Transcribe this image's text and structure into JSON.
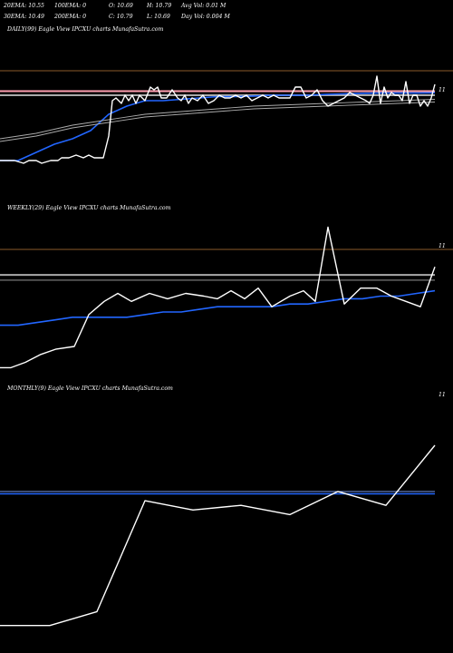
{
  "header": {
    "ema20": "20EMA: 10.55",
    "ema100": "100EMA: 0",
    "open": "O: 10.69",
    "high": "H: 10.79",
    "avgvol": "Avg Vol: 0.01 M",
    "ema30": "30EMA: 10.49",
    "ema200": "200EMA: 0",
    "close": "C: 10.79",
    "low": "L: 10.69",
    "dayvol": "Day Vol: 0.004 M"
  },
  "chart_data": [
    {
      "type": "line",
      "label": "DAILY(99) Eagle   View  IPCXU charts MunafaSutra.com",
      "tick_label": "11",
      "ylim": [
        10.4,
        10.88
      ],
      "reference_lines": [
        {
          "value": 10.805,
          "color": "#ff9fb0"
        },
        {
          "value": 10.79,
          "color": "#aaaaaa"
        }
      ],
      "series": [
        {
          "color": "#ffffff",
          "role": "price",
          "x": [
            0,
            16,
            26,
            32,
            40,
            46,
            56,
            64,
            68,
            76,
            84,
            92,
            98,
            104,
            114,
            120,
            124,
            128,
            134,
            138,
            142,
            146,
            150,
            154,
            160,
            166,
            170,
            174,
            178,
            184,
            190,
            196,
            200,
            204,
            208,
            212,
            218,
            224,
            230,
            236,
            242,
            248,
            254,
            260,
            266,
            272,
            278,
            284,
            290,
            296,
            302,
            308,
            314,
            320,
            326,
            332,
            338,
            344,
            350,
            356,
            362,
            368,
            374,
            380,
            386,
            392,
            398,
            404,
            408,
            412,
            416,
            420,
            424,
            428,
            432,
            436,
            440,
            444,
            448,
            452,
            456,
            460,
            464,
            468,
            472,
            476,
            480
          ],
          "y": [
            10.55,
            10.55,
            10.54,
            10.55,
            10.55,
            10.54,
            10.55,
            10.55,
            10.56,
            10.56,
            10.57,
            10.56,
            10.57,
            10.56,
            10.56,
            10.64,
            10.77,
            10.78,
            10.76,
            10.79,
            10.77,
            10.79,
            10.76,
            10.79,
            10.77,
            10.82,
            10.81,
            10.82,
            10.78,
            10.78,
            10.81,
            10.78,
            10.77,
            10.79,
            10.76,
            10.78,
            10.77,
            10.79,
            10.76,
            10.77,
            10.79,
            10.78,
            10.78,
            10.79,
            10.78,
            10.79,
            10.77,
            10.78,
            10.79,
            10.78,
            10.79,
            10.78,
            10.78,
            10.78,
            10.82,
            10.82,
            10.78,
            10.79,
            10.81,
            10.77,
            10.75,
            10.76,
            10.77,
            10.78,
            10.8,
            10.79,
            10.78,
            10.77,
            10.76,
            10.79,
            10.86,
            10.76,
            10.82,
            10.78,
            10.8,
            10.79,
            10.79,
            10.77,
            10.84,
            10.76,
            10.79,
            10.79,
            10.75,
            10.77,
            10.75,
            10.78,
            10.83
          ]
        },
        {
          "color": "#2266ff",
          "role": "ema",
          "x": [
            0,
            20,
            40,
            60,
            80,
            100,
            120,
            140,
            160,
            180,
            200,
            220,
            240,
            260,
            280,
            300,
            320,
            340,
            360,
            380,
            400,
            420,
            440,
            460,
            480
          ],
          "y": [
            10.55,
            10.55,
            10.58,
            10.61,
            10.63,
            10.66,
            10.72,
            10.75,
            10.77,
            10.77,
            10.775,
            10.78,
            10.785,
            10.785,
            10.787,
            10.79,
            10.79,
            10.79,
            10.793,
            10.795,
            10.797,
            10.798,
            10.798,
            10.798,
            10.799
          ]
        },
        {
          "color": "#aaaaaa",
          "role": "ema",
          "x": [
            0,
            40,
            80,
            120,
            160,
            200,
            240,
            280,
            320,
            360,
            400,
            440,
            480
          ],
          "y": [
            10.63,
            10.65,
            10.68,
            10.7,
            10.72,
            10.73,
            10.74,
            10.75,
            10.755,
            10.76,
            10.765,
            10.77,
            10.775
          ]
        },
        {
          "color": "#aaaaaa",
          "role": "ema",
          "x": [
            0,
            40,
            80,
            120,
            160,
            200,
            240,
            280,
            320,
            360,
            400,
            440,
            480
          ],
          "y": [
            10.62,
            10.64,
            10.67,
            10.69,
            10.71,
            10.72,
            10.73,
            10.74,
            10.745,
            10.75,
            10.755,
            10.76,
            10.765
          ]
        }
      ]
    },
    {
      "type": "line",
      "label": "WEEKLY(29) Eagle   View  IPCXU charts MunafaSutra.com",
      "tick_label": "11",
      "ylim": [
        10.4,
        10.92
      ],
      "reference_lines": [
        {
          "value": 10.8,
          "color": "#aaaaaa"
        }
      ],
      "series": [
        {
          "color": "#ffffff",
          "role": "price",
          "x": [
            0,
            12,
            28,
            45,
            62,
            82,
            98,
            115,
            130,
            145,
            165,
            185,
            205,
            225,
            240,
            255,
            270,
            285,
            300,
            320,
            335,
            348,
            362,
            380,
            398,
            416,
            432,
            448,
            464,
            480
          ],
          "y": [
            10.45,
            10.45,
            10.47,
            10.5,
            10.52,
            10.53,
            10.65,
            10.7,
            10.73,
            10.7,
            10.73,
            10.71,
            10.73,
            10.72,
            10.71,
            10.74,
            10.71,
            10.75,
            10.68,
            10.72,
            10.74,
            10.7,
            10.98,
            10.69,
            10.75,
            10.75,
            10.72,
            10.7,
            10.68,
            10.83
          ]
        },
        {
          "color": "#2266ff",
          "role": "ema",
          "x": [
            0,
            20,
            40,
            60,
            80,
            100,
            120,
            140,
            160,
            180,
            200,
            220,
            240,
            260,
            280,
            300,
            320,
            340,
            360,
            380,
            400,
            420,
            440,
            460,
            480
          ],
          "y": [
            10.61,
            10.61,
            10.62,
            10.63,
            10.64,
            10.64,
            10.64,
            10.64,
            10.65,
            10.66,
            10.66,
            10.67,
            10.68,
            10.68,
            10.68,
            10.68,
            10.69,
            10.69,
            10.7,
            10.71,
            10.71,
            10.72,
            10.72,
            10.73,
            10.74
          ]
        },
        {
          "color": "#aaaaaa",
          "role": "ema",
          "x": [
            0,
            480
          ],
          "y": [
            10.78,
            10.78
          ]
        }
      ]
    },
    {
      "type": "line",
      "label": "MONTHLY(9) Eagle   View  IPCXU charts MunafaSutra.com",
      "tick_label": "11",
      "ylim": [
        10.4,
        10.92
      ],
      "reference_lines": [],
      "series": [
        {
          "color": "#ffffff",
          "role": "price",
          "x": [
            0,
            55,
            107,
            160,
            213,
            266,
            320,
            373,
            426,
            480
          ],
          "y": [
            10.43,
            10.43,
            10.46,
            10.7,
            10.68,
            10.69,
            10.67,
            10.72,
            10.69,
            10.82
          ]
        },
        {
          "color": "#88aaff",
          "role": "ema",
          "x": [
            0,
            480
          ],
          "y": [
            10.72,
            10.72
          ]
        },
        {
          "color": "#2266ff",
          "role": "ema",
          "x": [
            0,
            480
          ],
          "y": [
            10.715,
            10.715
          ]
        }
      ]
    }
  ]
}
